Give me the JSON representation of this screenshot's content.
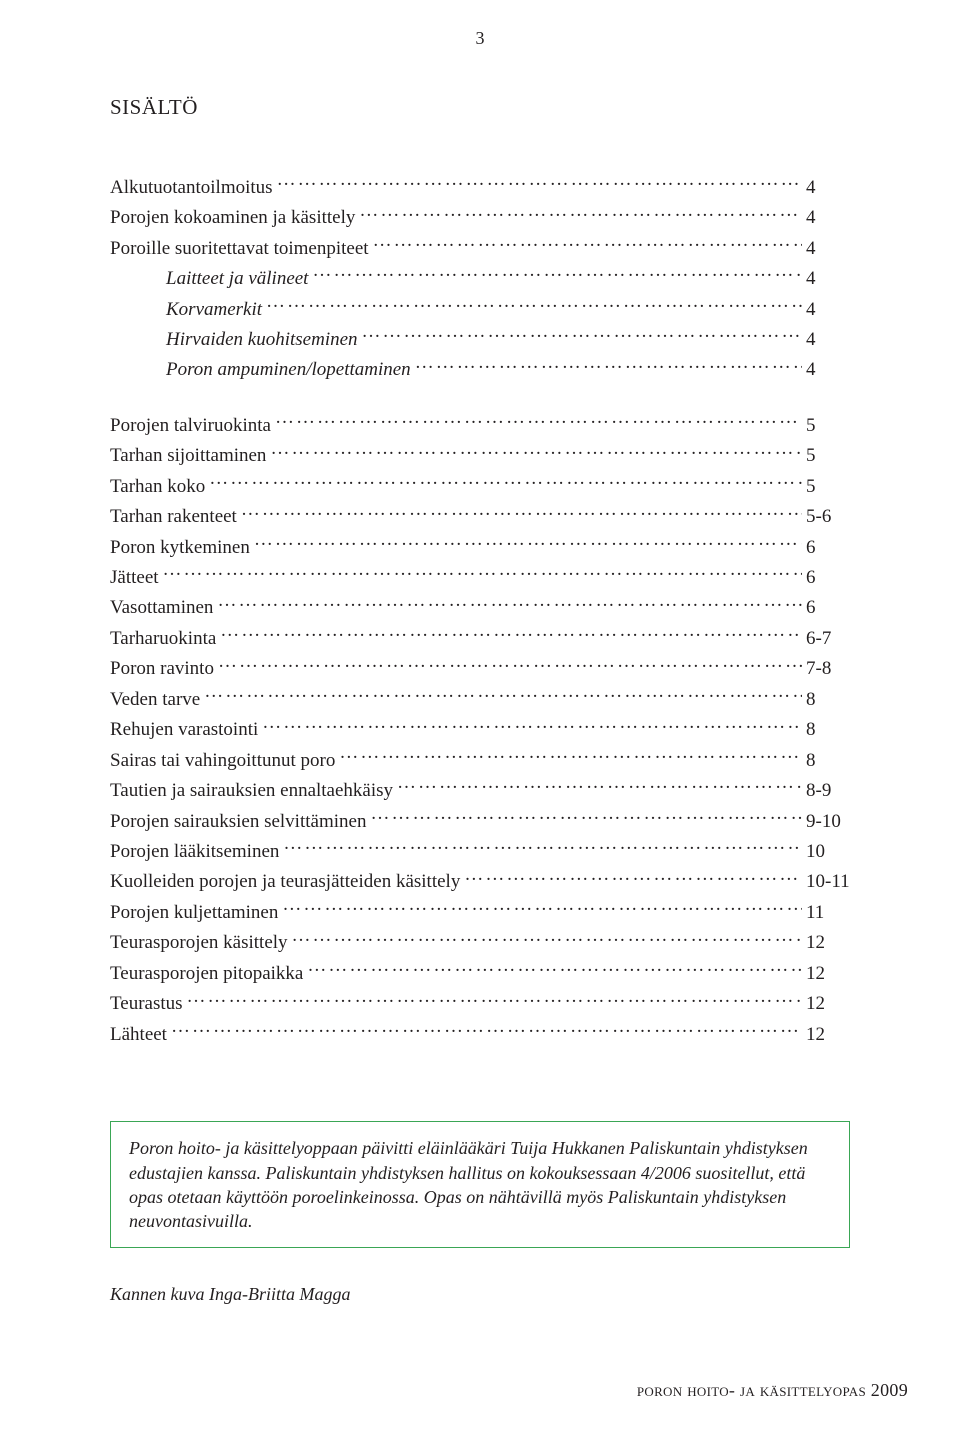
{
  "page_number_top": "3",
  "title": "sisältö",
  "toc": [
    {
      "label": "Alkutuotantoilmoitus",
      "page": "4",
      "indent": false
    },
    {
      "label": "Porojen kokoaminen ja käsittely",
      "page": "4",
      "indent": false
    },
    {
      "label": "Poroille suoritettavat toimenpiteet",
      "page": "4",
      "indent": false
    },
    {
      "label": "Laitteet ja välineet",
      "page": "4",
      "indent": true
    },
    {
      "label": "Korvamerkit",
      "page": "4",
      "indent": true
    },
    {
      "label": "Hirvaiden kuohitseminen",
      "page": "4",
      "indent": true
    },
    {
      "label": "Poron ampuminen/lopettaminen",
      "page": "4",
      "indent": true
    },
    {
      "gap": true
    },
    {
      "label": "Porojen talviruokinta",
      "page": "5",
      "indent": false
    },
    {
      "label": "Tarhan sijoittaminen",
      "page": "5",
      "indent": false
    },
    {
      "label": "Tarhan koko",
      "page": "5",
      "indent": false
    },
    {
      "label": "Tarhan rakenteet",
      "page": "5-6",
      "indent": false
    },
    {
      "label": "Poron kytkeminen",
      "page": "6",
      "indent": false
    },
    {
      "label": "Jätteet",
      "page": "6",
      "indent": false
    },
    {
      "label": "Vasottaminen",
      "page": "6",
      "indent": false
    },
    {
      "label": "Tarharuokinta",
      "page": "6-7",
      "indent": false
    },
    {
      "label": "Poron ravinto",
      "page": "7-8",
      "indent": false
    },
    {
      "label": "Veden tarve",
      "page": "8",
      "indent": false
    },
    {
      "label": "Rehujen varastointi",
      "page": "8",
      "indent": false
    },
    {
      "label": "Sairas tai vahingoittunut poro",
      "page": "8",
      "indent": false
    },
    {
      "label": "Tautien ja sairauksien ennaltaehkäisy",
      "page": "8-9",
      "indent": false
    },
    {
      "label": "Porojen sairauksien selvittäminen",
      "page": "9-10",
      "indent": false
    },
    {
      "label": "Porojen lääkitseminen",
      "page": "10",
      "indent": false
    },
    {
      "label": "Kuolleiden porojen ja teurasjätteiden käsittely",
      "page": "10-11",
      "indent": false
    },
    {
      "label": "Porojen kuljettaminen",
      "page": "11",
      "indent": false
    },
    {
      "label": "Teurasporojen käsittely",
      "page": "12",
      "indent": false
    },
    {
      "label": "Teurasporojen pitopaikka",
      "page": "12",
      "indent": false
    },
    {
      "label": "Teurastus",
      "page": "12",
      "indent": false
    },
    {
      "label": "Lähteet",
      "page": "12",
      "indent": false
    }
  ],
  "note_box": "Poron hoito- ja käsittelyoppaan päivitti eläinlääkäri Tuija Hukkanen Paliskuntain yhdistyksen edustajien kanssa. Paliskuntain yhdistyksen hallitus on kokouksessaan 4/2006 suositellut, että opas otetaan käyttöön poroelinkeinossa. Opas on nähtävillä myös Paliskuntain yhdistyksen neuvontasivuilla.",
  "credit": "Kannen kuva Inga-Briitta Magga",
  "footer": "poron hoito- ja käsittelyopas 2009",
  "colors": {
    "text": "#231f20",
    "box_border": "#3aa655",
    "background": "#ffffff"
  }
}
